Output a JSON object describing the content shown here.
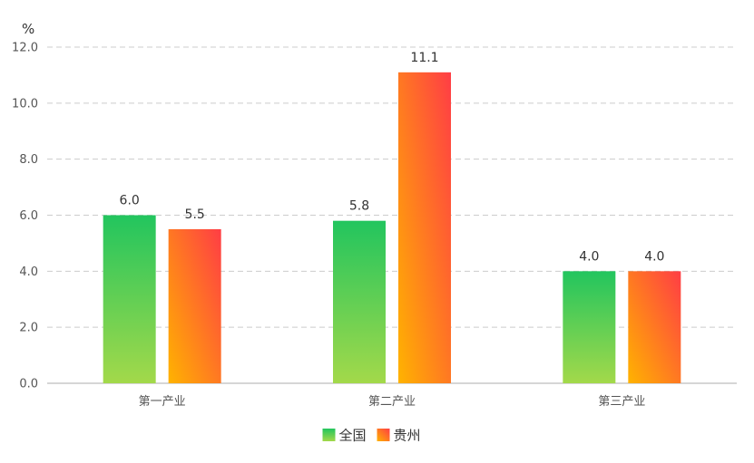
{
  "chart_data": {
    "type": "bar",
    "unit": "%",
    "categories": [
      "第一产业",
      "第二产业",
      "第三产业"
    ],
    "series": [
      {
        "name": "全国",
        "values": [
          6.0,
          5.8,
          4.0
        ],
        "value_labels": [
          "6.0",
          "5.8",
          "4.0"
        ],
        "color_top": "#22c55e",
        "color_bottom": "#a3d94a"
      },
      {
        "name": "贵州",
        "values": [
          5.5,
          11.1,
          4.0
        ],
        "value_labels": [
          "5.5",
          "11.1",
          "4.0"
        ],
        "color_top": "#ff3d45",
        "color_bottom": "#ffb300"
      }
    ],
    "ylim": [
      0,
      12
    ],
    "yticks": [
      0,
      2,
      4,
      6,
      8,
      10,
      12
    ],
    "ytick_labels": [
      "0.0",
      "2.0",
      "4.0",
      "6.0",
      "8.0",
      "10.0",
      "12.0"
    ],
    "grid": true,
    "grid_color": "#cccccc",
    "legend_position": "bottom-center"
  }
}
